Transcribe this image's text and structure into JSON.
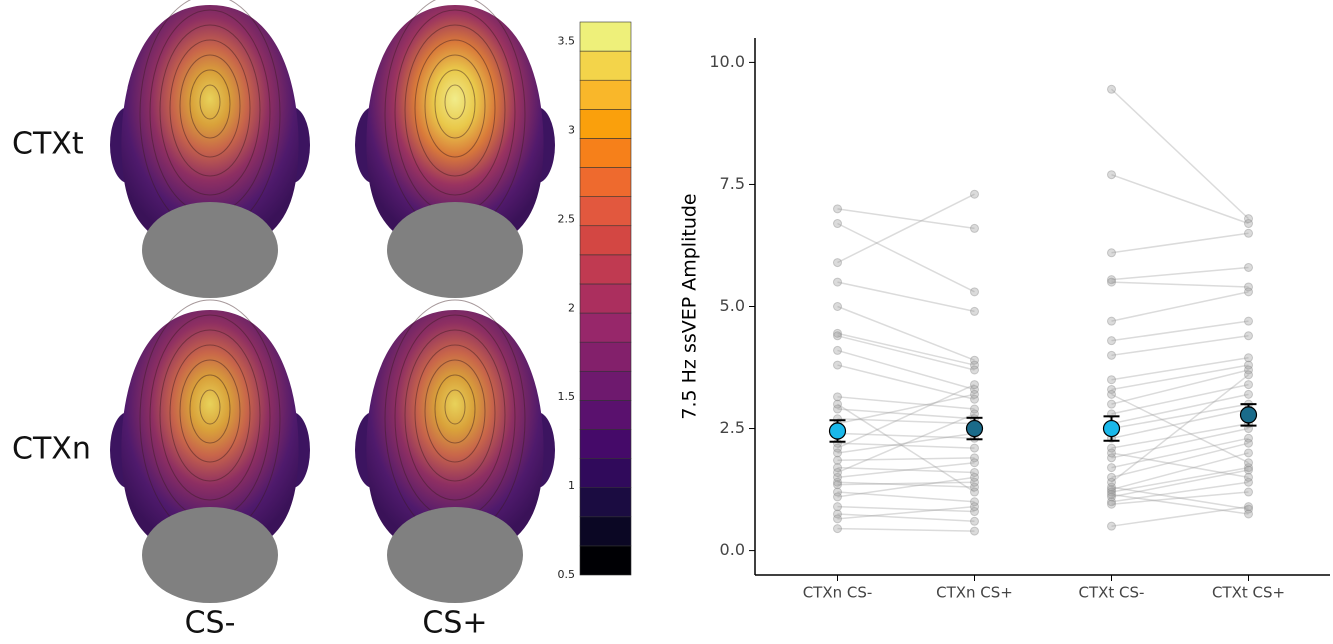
{
  "topomap": {
    "rows": [
      "CTXt",
      "CTXn"
    ],
    "columns": [
      "CS-",
      "CS+"
    ],
    "colorbar": {
      "lim": [
        0.5,
        3.61
      ],
      "ticks": [
        0.5,
        1,
        1.5,
        2,
        2.5,
        3,
        3.5
      ],
      "colors": [
        "#000004",
        "#0b0724",
        "#1b0c41",
        "#300a5b",
        "#450a69",
        "#5a116e",
        "#6e196e",
        "#83206b",
        "#97276a",
        "#ab2f5e",
        "#c03a51",
        "#d34743",
        "#e2583e",
        "#ee6a2e",
        "#f6801a",
        "#faa00c",
        "#f9b72a",
        "#f3d44a",
        "#eef07a"
      ]
    }
  },
  "chart_data": {
    "type": "paired-dot",
    "ylabel": "7.5 Hz ssVEP Amplitude",
    "categories": [
      "CTXn CS-",
      "CTXn CS+",
      "CTXt CS-",
      "CTXt CS+"
    ],
    "pairs": [
      [
        0,
        1
      ],
      [
        2,
        3
      ]
    ],
    "means": [
      2.45,
      2.5,
      2.5,
      2.78
    ],
    "errors": [
      0.22,
      0.22,
      0.25,
      0.22
    ],
    "mean_colors": [
      "#1ab8ea",
      "#1a6b8a",
      "#1ab8ea",
      "#1a6b8a"
    ],
    "subjects": [
      [
        7.0,
        6.6,
        9.45,
        6.8
      ],
      [
        6.7,
        5.3,
        7.7,
        6.7
      ],
      [
        5.9,
        7.3,
        6.1,
        6.5
      ],
      [
        5.5,
        4.9,
        5.55,
        5.8
      ],
      [
        5.0,
        3.9,
        5.5,
        5.4
      ],
      [
        4.45,
        3.8,
        4.7,
        5.3
      ],
      [
        4.4,
        3.7,
        4.3,
        4.7
      ],
      [
        4.1,
        3.3,
        4.0,
        4.4
      ],
      [
        3.8,
        3.1,
        3.5,
        3.95
      ],
      [
        3.15,
        2.9,
        3.3,
        3.8
      ],
      [
        2.9,
        2.7,
        3.0,
        3.7
      ],
      [
        2.7,
        2.6,
        2.8,
        3.4
      ],
      [
        2.6,
        3.2,
        2.6,
        3.2
      ],
      [
        2.4,
        2.3,
        2.5,
        3.0
      ],
      [
        2.2,
        2.1,
        2.3,
        2.9
      ],
      [
        2.0,
        2.4,
        2.1,
        2.6
      ],
      [
        1.85,
        1.9,
        1.9,
        2.5
      ],
      [
        1.7,
        1.6,
        1.7,
        2.3
      ],
      [
        1.5,
        1.8,
        1.5,
        2.2
      ],
      [
        1.4,
        1.3,
        1.25,
        2.0
      ],
      [
        1.35,
        1.4,
        1.2,
        1.7
      ],
      [
        1.2,
        1.0,
        1.1,
        1.65
      ],
      [
        1.1,
        1.5,
        1.0,
        1.4
      ],
      [
        0.9,
        0.8,
        0.95,
        1.2
      ],
      [
        0.75,
        0.6,
        0.5,
        0.9
      ],
      [
        0.65,
        0.9,
        1.3,
        0.85
      ],
      [
        0.45,
        0.4,
        1.15,
        0.75
      ],
      [
        1.6,
        2.8,
        3.2,
        1.8
      ],
      [
        3.0,
        1.2,
        2.0,
        1.5
      ],
      [
        2.1,
        3.4,
        1.4,
        3.6
      ]
    ],
    "ylim": [
      -0.5,
      10.5
    ],
    "yticks": [
      {
        "value": 0,
        "label": "0.0"
      },
      {
        "value": 2.5,
        "label": "2.5"
      },
      {
        "value": 5,
        "label": "5.0"
      },
      {
        "value": 7.5,
        "label": "7.5"
      },
      {
        "value": 10,
        "label": "10.0"
      }
    ]
  }
}
